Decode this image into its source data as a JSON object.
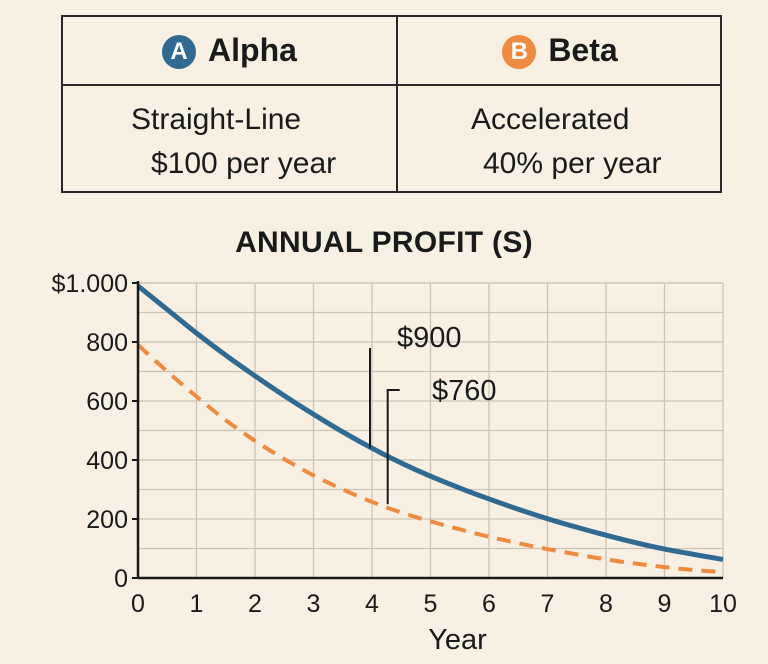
{
  "table": {
    "alpha": {
      "badge": "A",
      "name": "Alpha",
      "method": "Straight-Line",
      "rate": "$100 per year",
      "color": "#2f6a93"
    },
    "beta": {
      "badge": "B",
      "name": "Beta",
      "method": "Accelerated",
      "rate": "40% per year",
      "color": "#ef8a3e"
    }
  },
  "chart_data": {
    "type": "line",
    "title": "ANNUAL PROFIT (S)",
    "xlabel": "Year",
    "ylabel": "",
    "xlim": [
      0,
      10
    ],
    "ylim": [
      0,
      1000
    ],
    "x_ticks": [
      0,
      1,
      2,
      3,
      4,
      5,
      6,
      7,
      8,
      9,
      10
    ],
    "x_tick_labels": [
      "0",
      "1",
      "2",
      "3",
      "4",
      "5",
      "6",
      "7",
      "8",
      "9",
      "10"
    ],
    "y_ticks": [
      0,
      200,
      400,
      600,
      800,
      1000
    ],
    "y_tick_labels": [
      "0",
      "200",
      "400",
      "600",
      "800",
      "$1.000"
    ],
    "grid": true,
    "series": [
      {
        "name": "Alpha",
        "style": "solid",
        "color": "#2f6a93",
        "x": [
          0,
          0.5,
          1,
          1.5,
          2,
          2.5,
          3,
          3.5,
          4,
          4.5,
          5,
          5.5,
          6,
          6.5,
          7,
          7.5,
          8,
          8.5,
          9,
          9.5,
          10
        ],
        "y": [
          990,
          910,
          830,
          755,
          685,
          618,
          555,
          495,
          440,
          390,
          345,
          305,
          268,
          233,
          201,
          172,
          145,
          120,
          98,
          80,
          63
        ]
      },
      {
        "name": "Beta",
        "style": "dashed",
        "color": "#ef8a3e",
        "x": [
          0,
          0.5,
          1,
          1.5,
          2,
          2.5,
          3,
          3.5,
          4,
          4.5,
          5,
          5.5,
          6,
          6.5,
          7,
          7.5,
          8,
          8.5,
          9,
          9.5,
          10
        ],
        "y": [
          790,
          700,
          615,
          535,
          465,
          403,
          348,
          300,
          258,
          222,
          192,
          165,
          140,
          118,
          98,
          80,
          63,
          49,
          37,
          27,
          20
        ]
      }
    ],
    "annotations": [
      {
        "text": "$900",
        "series": "Alpha",
        "x": 4,
        "y": 440
      },
      {
        "text": "$760",
        "series": "Beta",
        "x": 4.2,
        "y": 250
      }
    ]
  }
}
